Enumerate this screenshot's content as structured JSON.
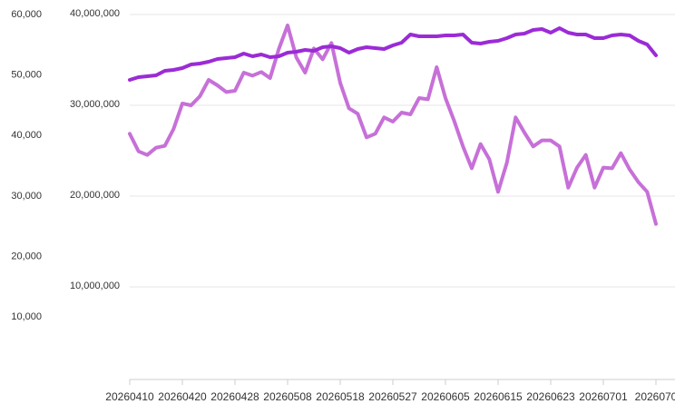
{
  "chart_data": {
    "type": "line",
    "categories": [
      "20260410",
      null,
      null,
      null,
      null,
      null,
      "20260420",
      null,
      null,
      null,
      null,
      null,
      "20260428",
      null,
      null,
      null,
      null,
      null,
      "20260508",
      null,
      null,
      null,
      null,
      null,
      "20260518",
      null,
      null,
      null,
      null,
      null,
      "20260527",
      null,
      null,
      null,
      null,
      null,
      "20260605",
      null,
      null,
      null,
      null,
      null,
      "20260615",
      null,
      null,
      null,
      null,
      null,
      "20260623",
      null,
      null,
      null,
      null,
      null,
      "20260701",
      null,
      null,
      null,
      null,
      null,
      "2026070"
    ],
    "series": [
      {
        "color": "#c770d8",
        "axis": "y",
        "values": [
          40300,
          37400,
          36800,
          38000,
          38300,
          41100,
          45300,
          45000,
          46500,
          49200,
          48300,
          47200,
          47400,
          50400,
          49900,
          50500,
          49500,
          54300,
          58200,
          52900,
          50400,
          54400,
          52600,
          55300,
          48700,
          44500,
          43600,
          39700,
          40300,
          43000,
          42300,
          43800,
          43500,
          46200,
          46000,
          51300,
          46200,
          42400,
          38200,
          34600,
          38600,
          36100,
          30700,
          35500,
          43000,
          40500,
          38200,
          39200,
          39200,
          38200,
          31400,
          34700,
          36800,
          31400,
          34700,
          34600,
          37100,
          34400,
          32300,
          30700,
          25400
        ]
      },
      {
        "color": "#9b2bd6",
        "axis": "y2",
        "values": [
          32800000,
          33100000,
          33200000,
          33300000,
          33800000,
          33900000,
          34100000,
          34500000,
          34600000,
          34800000,
          35100000,
          35200000,
          35300000,
          35700000,
          35400000,
          35600000,
          35300000,
          35400000,
          35800000,
          35900000,
          36100000,
          36000000,
          36400000,
          36500000,
          36300000,
          35800000,
          36200000,
          36400000,
          36300000,
          36200000,
          36600000,
          36900000,
          37800000,
          37600000,
          37600000,
          37600000,
          37700000,
          37700000,
          37800000,
          36900000,
          36800000,
          37000000,
          37100000,
          37400000,
          37800000,
          37900000,
          38300000,
          38400000,
          38000000,
          38500000,
          38000000,
          37800000,
          37800000,
          37400000,
          37400000,
          37700000,
          37800000,
          37700000,
          37100000,
          36700000,
          35500000
        ]
      }
    ],
    "ylim": [
      0,
      60000
    ],
    "yticks": [
      {
        "value": 10000,
        "label": "10,000"
      },
      {
        "value": 20000,
        "label": "20,000"
      },
      {
        "value": 30000,
        "label": "30,000"
      },
      {
        "value": 40000,
        "label": "40,000"
      },
      {
        "value": 50000,
        "label": "50,000"
      },
      {
        "value": 60000,
        "label": "60,000"
      }
    ],
    "y2lim": [
      0,
      40000000
    ],
    "y2ticks": [
      {
        "value": 10000000,
        "label": "10,000,000"
      },
      {
        "value": 20000000,
        "label": "20,000,000"
      },
      {
        "value": 30000000,
        "label": "30,000,000"
      },
      {
        "value": 40000000,
        "label": "40,000,000"
      }
    ],
    "grid": true
  }
}
